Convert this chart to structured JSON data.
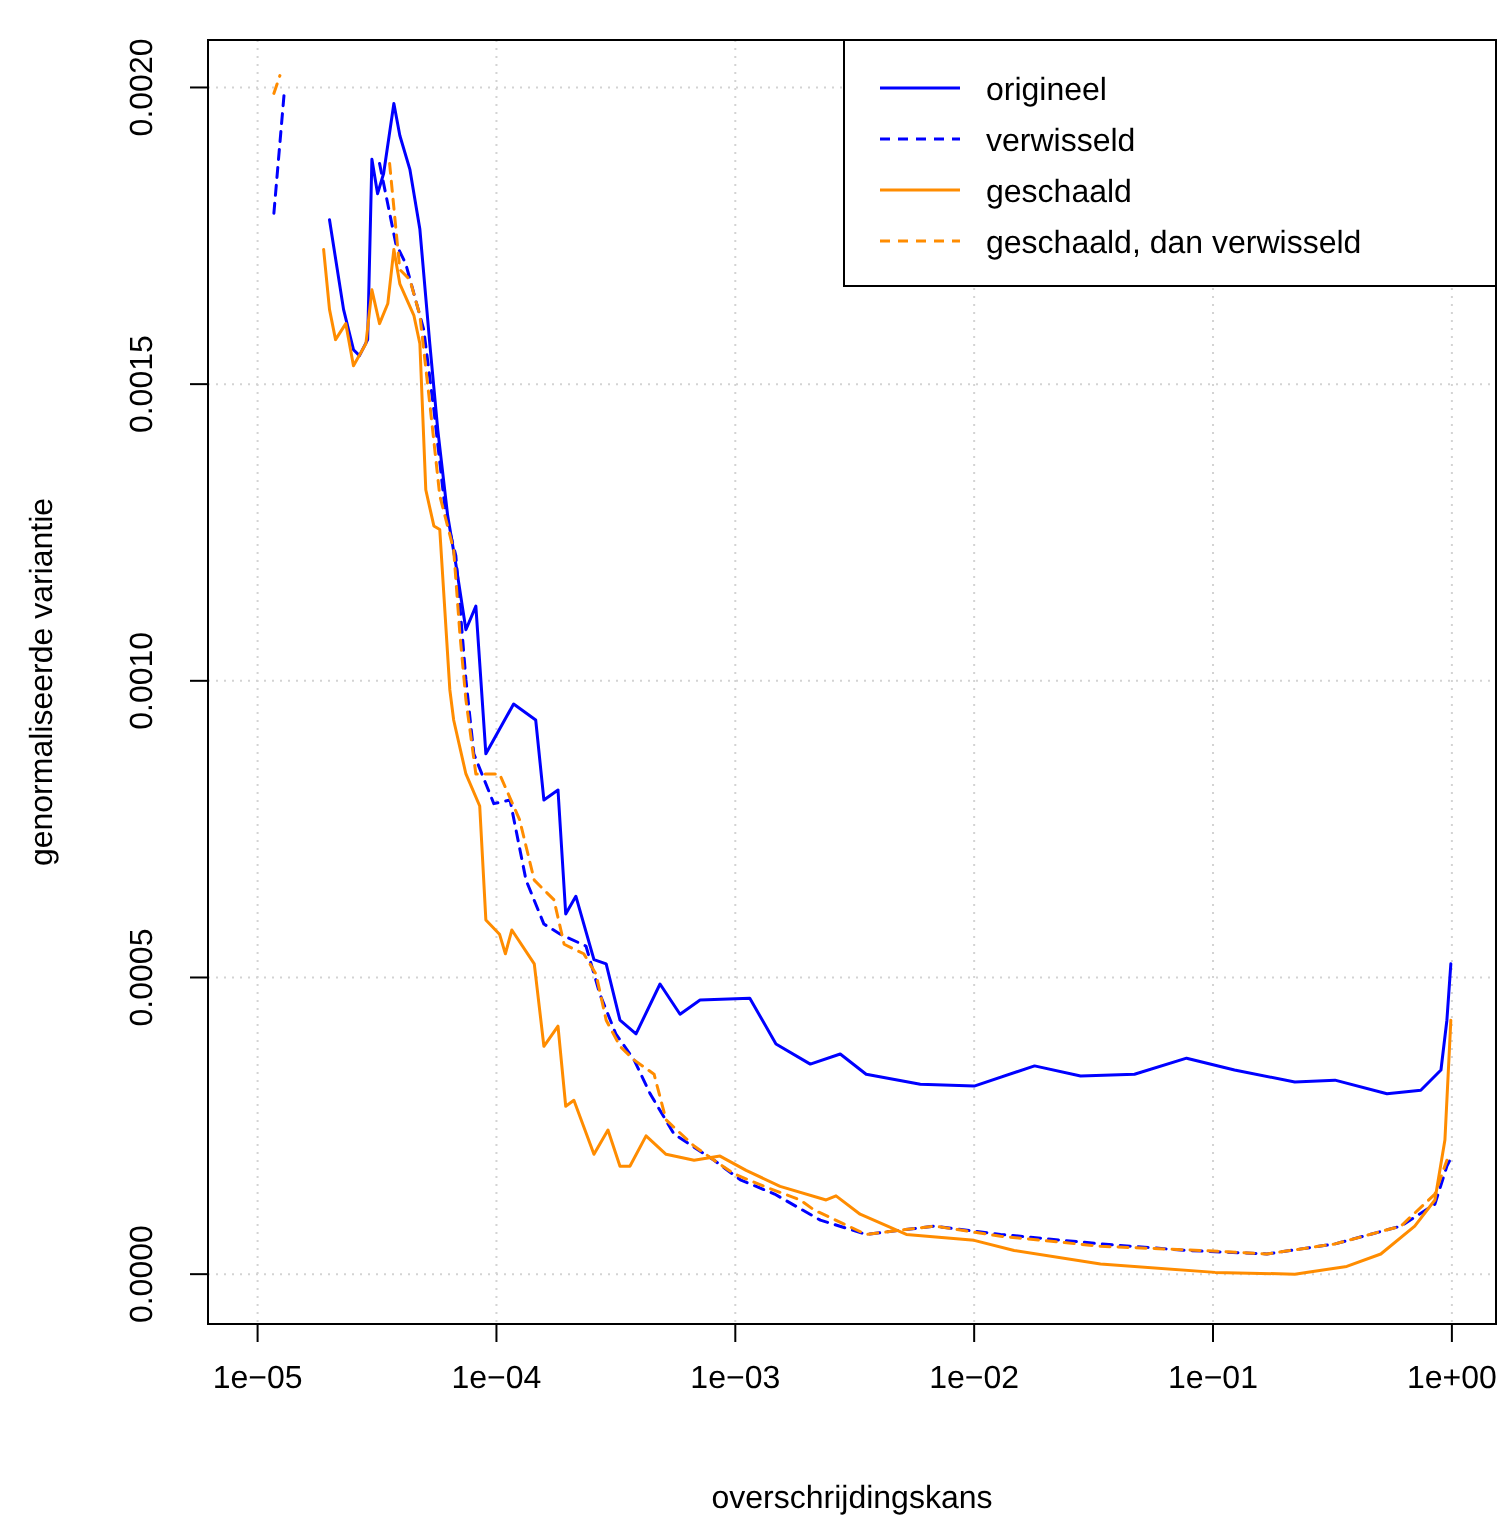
{
  "chart_data": {
    "type": "line",
    "xlabel": "overschrijdingskans",
    "ylabel": "genormaliseerde variantie",
    "log": "x",
    "grid": true,
    "legend": "top right",
    "xlim": [
      6.2e-06,
      1.53
    ],
    "ylim": [
      -8.4e-05,
      0.00208
    ],
    "xticks": [
      {
        "value": 1e-05,
        "label": "1e−05"
      },
      {
        "value": 0.0001,
        "label": "1e−04"
      },
      {
        "value": 0.001,
        "label": "1e−03"
      },
      {
        "value": 0.01,
        "label": "1e−02"
      },
      {
        "value": 0.1,
        "label": "1e−01"
      },
      {
        "value": 1,
        "label": "1e+00"
      }
    ],
    "yticks": [
      {
        "value": 0,
        "label": "0.0000"
      },
      {
        "value": 0.0005,
        "label": "0.0005"
      },
      {
        "value": 0.001,
        "label": "0.0010"
      },
      {
        "value": 0.0015,
        "label": "0.0015"
      },
      {
        "value": 0.002,
        "label": "0.0020"
      }
    ],
    "series": [
      {
        "name": "origineel",
        "color": "#0000ff",
        "line_style": "solid",
        "x": [
          2e-05,
          2.29e-05,
          2.52e-05,
          2.67e-05,
          2.89e-05,
          3.01e-05,
          3.18e-05,
          3.37e-05,
          3.72e-05,
          3.94e-05,
          4.34e-05,
          4.78e-05,
          5.26e-05,
          5.68e-05,
          6.25e-05,
          6.76e-05,
          7.45e-05,
          8.2e-05,
          9.03e-05,
          0.000118,
          0.000146,
          0.000158,
          0.000181,
          0.000195,
          0.000215,
          0.000256,
          0.000288,
          0.000329,
          0.000384,
          0.000484,
          0.000587,
          0.000712,
          0.00115,
          0.00148,
          0.00206,
          0.00275,
          0.00353,
          0.00595,
          0.01,
          0.0179,
          0.0279,
          0.0469,
          0.0775,
          0.123,
          0.22,
          0.324,
          0.535,
          0.741,
          0.9,
          0.953,
          0.99
        ],
        "values": [
          0.001777,
          0.001626,
          0.001558,
          0.001548,
          0.001575,
          0.001879,
          0.001821,
          0.001855,
          0.001973,
          0.001919,
          0.001862,
          0.001761,
          0.001568,
          0.001423,
          0.001278,
          0.001197,
          0.001086,
          0.001126,
          0.000877,
          0.000961,
          0.000934,
          0.000799,
          0.000816,
          0.000607,
          0.000637,
          0.00053,
          0.000523,
          0.000428,
          0.000405,
          0.000489,
          0.000438,
          0.000462,
          0.000465,
          0.000388,
          0.000354,
          0.000371,
          0.000337,
          0.00032,
          0.000317,
          0.000351,
          0.000334,
          0.000337,
          0.000364,
          0.000344,
          0.000324,
          0.000327,
          0.000304,
          0.00031,
          0.000344,
          0.000428,
          0.000523
        ]
      },
      {
        "name": "verwisseld",
        "color": "#0000ff",
        "line_style": "dashed",
        "x": [
          1.17e-05,
          1.29e-05,
          null,
          3.24e-05,
          3.79e-05,
          4.17e-05,
          4.96e-05,
          5.47e-05,
          6.14e-05,
          6.76e-05,
          7.45e-05,
          8.04e-05,
          9.75e-05,
          0.000114,
          0.000133,
          0.000158,
          0.000185,
          0.000237,
          0.000271,
          0.000316,
          0.000377,
          0.00044,
          0.000554,
          0.000815,
          0.00105,
          0.00146,
          0.00227,
          0.00353,
          0.00681,
          0.0129,
          0.0338,
          0.0775,
          0.168,
          0.324,
          0.612,
          0.849,
          0.953,
          1.0
        ],
        "values": [
          0.001788,
          0.001987,
          null,
          0.001872,
          0.001737,
          0.001703,
          0.001592,
          0.001457,
          0.001278,
          0.001211,
          0.001002,
          0.000877,
          0.000793,
          0.000799,
          0.000664,
          0.00059,
          0.000573,
          0.000553,
          0.000472,
          0.000405,
          0.000361,
          0.000304,
          0.000236,
          0.000192,
          0.000159,
          0.000135,
          9.1e-05,
          6.7e-05,
          8.1e-05,
          6.7e-05,
          5.1e-05,
          4e-05,
          3.4e-05,
          5.1e-05,
          8.1e-05,
          0.000118,
          0.000182,
          0.000199
        ]
      },
      {
        "name": "geschaald",
        "color": "#ff8c00",
        "line_style": "solid",
        "x": [
          1.89e-05,
          2e-05,
          2.12e-05,
          2.34e-05,
          2.52e-05,
          2.84e-05,
          3.01e-05,
          3.24e-05,
          3.51e-05,
          3.72e-05,
          3.94e-05,
          4.51e-05,
          4.78e-05,
          5.06e-05,
          5.47e-05,
          5.79e-05,
          6.38e-05,
          6.62e-05,
          7.45e-05,
          8.51e-05,
          9.03e-05,
          0.000103,
          0.000109,
          0.000116,
          0.000144,
          0.000158,
          0.000181,
          0.000195,
          0.000211,
          0.000256,
          0.000293,
          0.000329,
          0.000362,
          0.000423,
          0.000513,
          0.000672,
          0.000863,
          0.00111,
          0.00154,
          0.0024,
          0.00264,
          0.00333,
          0.0052,
          0.01,
          0.0147,
          0.0338,
          0.102,
          0.22,
          0.363,
          0.504,
          0.699,
          0.849,
          0.935,
          0.99
        ],
        "values": [
          0.001727,
          0.001626,
          0.001575,
          0.001602,
          0.001531,
          0.001568,
          0.001659,
          0.001602,
          0.001636,
          0.001727,
          0.001669,
          0.001616,
          0.001568,
          0.001322,
          0.001261,
          0.001255,
          0.000985,
          0.000934,
          0.000843,
          0.000789,
          0.000597,
          0.000573,
          0.00054,
          0.00058,
          0.000523,
          0.000384,
          0.000418,
          0.000283,
          0.000293,
          0.000202,
          0.000243,
          0.000182,
          0.000182,
          0.000233,
          0.000202,
          0.000192,
          0.000199,
          0.000175,
          0.000148,
          0.000125,
          0.000132,
          0.000101,
          6.7e-05,
          5.7e-05,
          4e-05,
          1.7e-05,
          3e-06,
          0.0,
          1.3e-05,
          3.4e-05,
          8.1e-05,
          0.000125,
          0.000226,
          0.000428
        ]
      },
      {
        "name": "geschaald, dan verwisseld",
        "color": "#ff8c00",
        "line_style": "dashed",
        "x": [
          1.17e-05,
          1.24e-05,
          null,
          3.57e-05,
          3.94e-05,
          4.34e-05,
          4.78e-05,
          5.26e-05,
          5.79e-05,
          6.62e-05,
          7.03e-05,
          7.45e-05,
          8.2e-05,
          0.000103,
          0.000125,
          0.000144,
          0.000174,
          0.000192,
          0.000232,
          0.000261,
          0.000288,
          0.000329,
          0.000377,
          0.000457,
          0.000513,
          0.000672,
          0.000815,
          0.000989,
          0.00132,
          0.00187,
          0.00214,
          0.00353,
          0.00681,
          0.0129,
          0.0338,
          0.0887,
          0.168,
          0.324,
          0.612,
          0.849,
          0.953
        ],
        "values": [
          0.00199,
          0.00202,
          null,
          0.001872,
          0.001693,
          0.001676,
          0.001616,
          0.001467,
          0.001312,
          0.001221,
          0.001079,
          0.000968,
          0.000843,
          0.000843,
          0.000766,
          0.000664,
          0.000631,
          0.000556,
          0.00054,
          0.000506,
          0.000428,
          0.000384,
          0.000361,
          0.000337,
          0.00026,
          0.000216,
          0.000192,
          0.000169,
          0.000148,
          0.000125,
          0.000108,
          6.7e-05,
          8.1e-05,
          6.4e-05,
          4.7e-05,
          4e-05,
          3.4e-05,
          5.1e-05,
          8.1e-05,
          0.000135,
          0.000192
        ]
      }
    ]
  }
}
